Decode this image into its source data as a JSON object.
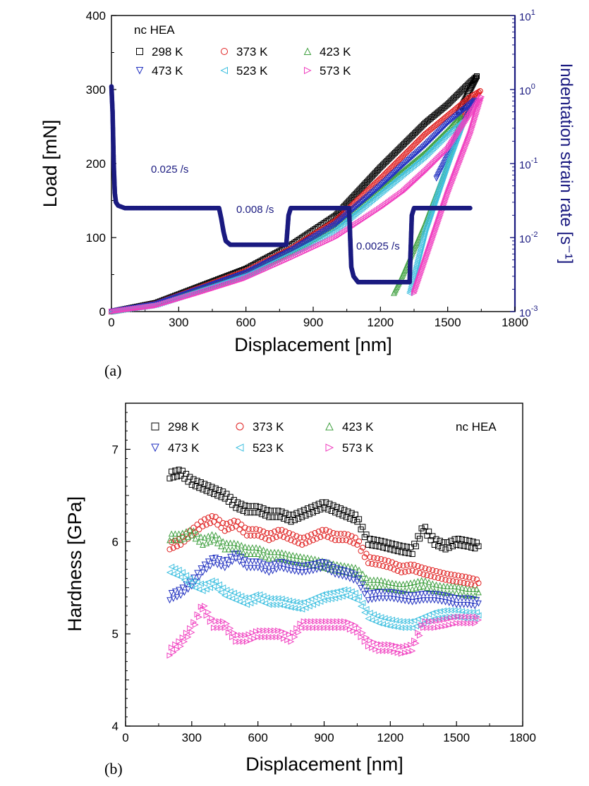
{
  "chart_data": [
    {
      "panel": "(a)",
      "type": "line",
      "xlabel": "Displacement [nm]",
      "ylabel": "Load [mN]",
      "y2label": "Indentation strain rate [s⁻¹]",
      "xlim": [
        0,
        1800
      ],
      "ylim": [
        0,
        400
      ],
      "y2lim": [
        0.001,
        10
      ],
      "y2_scale": "log",
      "xticks": [
        "0",
        "300",
        "600",
        "900",
        "1200",
        "1500",
        "1800"
      ],
      "yticks": [
        "0",
        "100",
        "200",
        "300",
        "400"
      ],
      "y2ticks": [
        {
          "base": "10",
          "exp": "-3"
        },
        {
          "base": "10",
          "exp": "-2"
        },
        {
          "base": "10",
          "exp": "-1"
        },
        {
          "base": "10",
          "exp": "0"
        },
        {
          "base": "10",
          "exp": "1"
        }
      ],
      "legend_title": "nc HEA",
      "legend_position": "top-left",
      "series": [
        {
          "name": "298 K",
          "marker": "square",
          "color": "#000000",
          "x": [
            0,
            200,
            400,
            600,
            800,
            1000,
            1200,
            1300,
            1400,
            1500,
            1600,
            1630,
            1630,
            1600,
            1550
          ],
          "y": [
            0,
            12,
            35,
            58,
            90,
            130,
            195,
            225,
            255,
            280,
            310,
            318,
            318,
            300,
            270
          ]
        },
        {
          "name": "373 K",
          "marker": "circle",
          "color": "#e02020",
          "x": [
            0,
            200,
            400,
            600,
            800,
            1000,
            1200,
            1300,
            1400,
            1500,
            1600,
            1645,
            1645,
            1600,
            1550
          ],
          "y": [
            0,
            11,
            33,
            55,
            85,
            123,
            180,
            210,
            240,
            265,
            290,
            298,
            298,
            280,
            250
          ]
        },
        {
          "name": "423 K",
          "marker": "triangle-up",
          "color": "#40a040",
          "x": [
            0,
            200,
            400,
            600,
            800,
            1000,
            1200,
            1300,
            1400,
            1500,
            1560,
            1560,
            1500,
            1400,
            1300,
            1260
          ],
          "y": [
            0,
            10,
            30,
            50,
            80,
            115,
            165,
            190,
            215,
            245,
            265,
            265,
            200,
            120,
            50,
            25
          ]
        },
        {
          "name": "473 K",
          "marker": "triangle-down",
          "color": "#2030c0",
          "x": [
            0,
            200,
            400,
            600,
            800,
            1000,
            1200,
            1300,
            1400,
            1500,
            1620,
            1620,
            1550,
            1450
          ],
          "y": [
            0,
            10,
            31,
            52,
            82,
            118,
            170,
            198,
            225,
            255,
            285,
            285,
            240,
            180
          ]
        },
        {
          "name": "523 K",
          "marker": "triangle-left",
          "color": "#40c0e0",
          "x": [
            0,
            200,
            400,
            600,
            800,
            1000,
            1200,
            1300,
            1400,
            1500,
            1570,
            1570,
            1500,
            1400,
            1330
          ],
          "y": [
            0,
            9,
            29,
            49,
            78,
            110,
            160,
            185,
            210,
            240,
            258,
            258,
            200,
            110,
            25
          ]
        },
        {
          "name": "573 K",
          "marker": "triangle-right",
          "color": "#f040c0",
          "x": [
            0,
            200,
            400,
            600,
            800,
            1000,
            1200,
            1300,
            1400,
            1500,
            1650,
            1650,
            1600,
            1500,
            1400,
            1350
          ],
          "y": [
            0,
            8,
            26,
            45,
            72,
            100,
            140,
            162,
            190,
            220,
            290,
            290,
            240,
            160,
            70,
            25
          ]
        }
      ],
      "strain_rate": {
        "name": "Indentation strain rate",
        "color": "#1a1a80",
        "x": [
          0,
          5,
          10,
          15,
          20,
          30,
          60,
          100,
          200,
          300,
          400,
          480,
          490,
          500,
          510,
          530,
          600,
          700,
          780,
          790,
          800,
          850,
          900,
          1000,
          1060,
          1065,
          1070,
          1080,
          1100,
          1200,
          1300,
          1330,
          1340,
          1350,
          1400,
          1500,
          1600
        ],
        "y": [
          1.1,
          0.5,
          0.1,
          0.04,
          0.03,
          0.027,
          0.025,
          0.025,
          0.025,
          0.025,
          0.025,
          0.025,
          0.018,
          0.012,
          0.009,
          0.008,
          0.008,
          0.008,
          0.008,
          0.02,
          0.025,
          0.025,
          0.025,
          0.025,
          0.025,
          0.01,
          0.004,
          0.003,
          0.0025,
          0.0025,
          0.0025,
          0.0025,
          0.02,
          0.025,
          0.025,
          0.025,
          0.025
        ]
      },
      "annotations": [
        "0.025 /s",
        "0.008 /s",
        "0.0025 /s"
      ]
    },
    {
      "panel": "(b)",
      "type": "scatter",
      "xlabel": "Displacement [nm]",
      "ylabel": "Hardness [GPa]",
      "xlim": [
        0,
        1800
      ],
      "ylim": [
        4,
        7.5
      ],
      "xticks": [
        "0",
        "300",
        "600",
        "900",
        "1200",
        "1500",
        "1800"
      ],
      "yticks": [
        "4",
        "5",
        "6",
        "7"
      ],
      "legend_title": "nc HEA",
      "legend_position": "top",
      "series": [
        {
          "name": "298 K",
          "marker": "square",
          "color": "#000000",
          "x": [
            200,
            250,
            300,
            350,
            400,
            450,
            500,
            550,
            600,
            650,
            700,
            750,
            800,
            850,
            900,
            950,
            1000,
            1050,
            1100,
            1150,
            1200,
            1250,
            1300,
            1350,
            1400,
            1450,
            1500,
            1550,
            1600
          ],
          "y": [
            6.72,
            6.75,
            6.65,
            6.6,
            6.55,
            6.5,
            6.4,
            6.35,
            6.35,
            6.3,
            6.3,
            6.25,
            6.3,
            6.35,
            6.4,
            6.35,
            6.3,
            6.25,
            6.0,
            5.98,
            5.95,
            5.92,
            5.9,
            6.15,
            6.0,
            5.95,
            6.0,
            5.98,
            5.95
          ]
        },
        {
          "name": "373 K",
          "marker": "circle",
          "color": "#e02020",
          "x": [
            200,
            250,
            300,
            350,
            400,
            450,
            500,
            550,
            600,
            650,
            700,
            750,
            800,
            850,
            900,
            950,
            1000,
            1050,
            1100,
            1150,
            1200,
            1250,
            1300,
            1350,
            1400,
            1450,
            1500,
            1550,
            1600
          ],
          "y": [
            5.95,
            6.0,
            6.1,
            6.2,
            6.25,
            6.15,
            6.2,
            6.1,
            6.1,
            6.05,
            6.1,
            6.05,
            6.0,
            6.05,
            6.1,
            6.05,
            6.05,
            6.0,
            5.8,
            5.78,
            5.75,
            5.7,
            5.72,
            5.68,
            5.65,
            5.62,
            5.6,
            5.58,
            5.55
          ]
        },
        {
          "name": "423 K",
          "marker": "triangle-up",
          "color": "#40a040",
          "x": [
            200,
            250,
            300,
            350,
            400,
            450,
            500,
            550,
            600,
            650,
            700,
            750,
            800,
            850,
            900,
            950,
            1000,
            1050,
            1100,
            1150,
            1200,
            1250,
            1300,
            1350,
            1400,
            1450,
            1500,
            1550,
            1600
          ],
          "y": [
            6.05,
            6.05,
            6.1,
            6.0,
            6.05,
            5.95,
            5.95,
            5.9,
            5.9,
            5.85,
            5.85,
            5.82,
            5.8,
            5.78,
            5.75,
            5.72,
            5.7,
            5.68,
            5.55,
            5.55,
            5.52,
            5.5,
            5.52,
            5.55,
            5.5,
            5.48,
            5.48,
            5.45,
            5.45
          ]
        },
        {
          "name": "473 K",
          "marker": "triangle-down",
          "color": "#2030c0",
          "x": [
            200,
            250,
            300,
            350,
            400,
            450,
            500,
            550,
            600,
            650,
            700,
            750,
            800,
            850,
            900,
            950,
            1000,
            1050,
            1100,
            1150,
            1200,
            1250,
            1300,
            1350,
            1400,
            1450,
            1500,
            1550,
            1600
          ],
          "y": [
            5.4,
            5.45,
            5.55,
            5.7,
            5.8,
            5.75,
            5.85,
            5.75,
            5.75,
            5.7,
            5.75,
            5.72,
            5.7,
            5.72,
            5.75,
            5.68,
            5.65,
            5.6,
            5.4,
            5.42,
            5.42,
            5.4,
            5.38,
            5.4,
            5.4,
            5.38,
            5.35,
            5.35,
            5.33
          ]
        },
        {
          "name": "523 K",
          "marker": "triangle-left",
          "color": "#40c0e0",
          "x": [
            200,
            250,
            300,
            350,
            400,
            450,
            500,
            550,
            600,
            650,
            700,
            750,
            800,
            850,
            900,
            950,
            1000,
            1050,
            1100,
            1150,
            1200,
            1250,
            1300,
            1350,
            1400,
            1450,
            1500,
            1550,
            1600
          ],
          "y": [
            5.7,
            5.65,
            5.55,
            5.5,
            5.55,
            5.45,
            5.4,
            5.35,
            5.4,
            5.35,
            5.35,
            5.32,
            5.3,
            5.35,
            5.4,
            5.42,
            5.45,
            5.4,
            5.2,
            5.15,
            5.12,
            5.1,
            5.1,
            5.15,
            5.2,
            5.22,
            5.22,
            5.2,
            5.2
          ]
        },
        {
          "name": "573 K",
          "marker": "triangle-right",
          "color": "#f040c0",
          "x": [
            200,
            250,
            300,
            350,
            400,
            450,
            500,
            550,
            600,
            650,
            700,
            750,
            800,
            850,
            900,
            950,
            1000,
            1050,
            1100,
            1150,
            1200,
            1250,
            1300,
            1350,
            1400,
            1450,
            1500,
            1550,
            1600
          ],
          "y": [
            4.8,
            4.9,
            5.05,
            5.3,
            5.1,
            5.1,
            4.95,
            4.95,
            5.0,
            5.0,
            5.0,
            4.95,
            5.1,
            5.1,
            5.1,
            5.1,
            5.1,
            5.05,
            4.9,
            4.85,
            4.85,
            4.82,
            4.85,
            5.1,
            5.1,
            5.12,
            5.15,
            5.15,
            5.15
          ]
        }
      ]
    }
  ]
}
